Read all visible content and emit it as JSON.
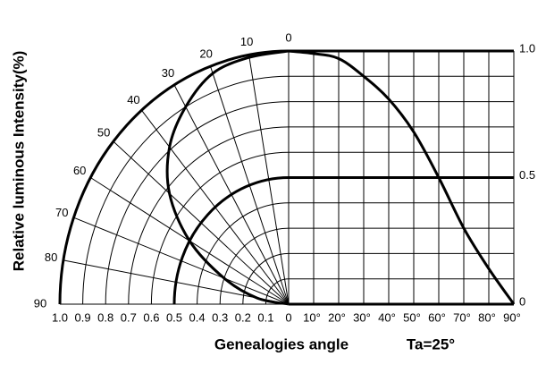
{
  "chart_data": {
    "type": "radiation",
    "ylabel": "Relative luminous Intensity(%)",
    "xlabel": "Genealogies angle",
    "annotation": "Ta=25°",
    "color": "#000000",
    "x": [
      0,
      10,
      20,
      30,
      40,
      50,
      60,
      70,
      80,
      90
    ],
    "values": [
      1.0,
      0.99,
      0.97,
      0.9,
      0.81,
      0.68,
      0.5,
      0.3,
      0.14,
      0
    ],
    "xlim": [
      0,
      90
    ],
    "xticks": [
      {
        "value": 10,
        "label": "10°"
      },
      {
        "value": 20,
        "label": "20°"
      },
      {
        "value": 30,
        "label": "30°"
      },
      {
        "value": 40,
        "label": "40°"
      },
      {
        "value": 50,
        "label": "50°"
      },
      {
        "value": 60,
        "label": "60°"
      },
      {
        "value": 70,
        "label": "70°"
      },
      {
        "value": 80,
        "label": "80°"
      },
      {
        "value": 90,
        "label": "90°"
      }
    ],
    "ylim": [
      0,
      1
    ],
    "yticks": [
      0,
      0.5,
      {
        "value": 1,
        "label": "1.0"
      }
    ],
    "rlim": [
      0,
      1
    ],
    "rticks": [
      {
        "value": 1,
        "label": "1.0"
      },
      0.9,
      0.8,
      0.7,
      0.6,
      0.5,
      0.4,
      0.3,
      0.2,
      0.1,
      0
    ],
    "angle_ticks": [
      0,
      10,
      20,
      30,
      40,
      50,
      60,
      70,
      80,
      90
    ]
  }
}
